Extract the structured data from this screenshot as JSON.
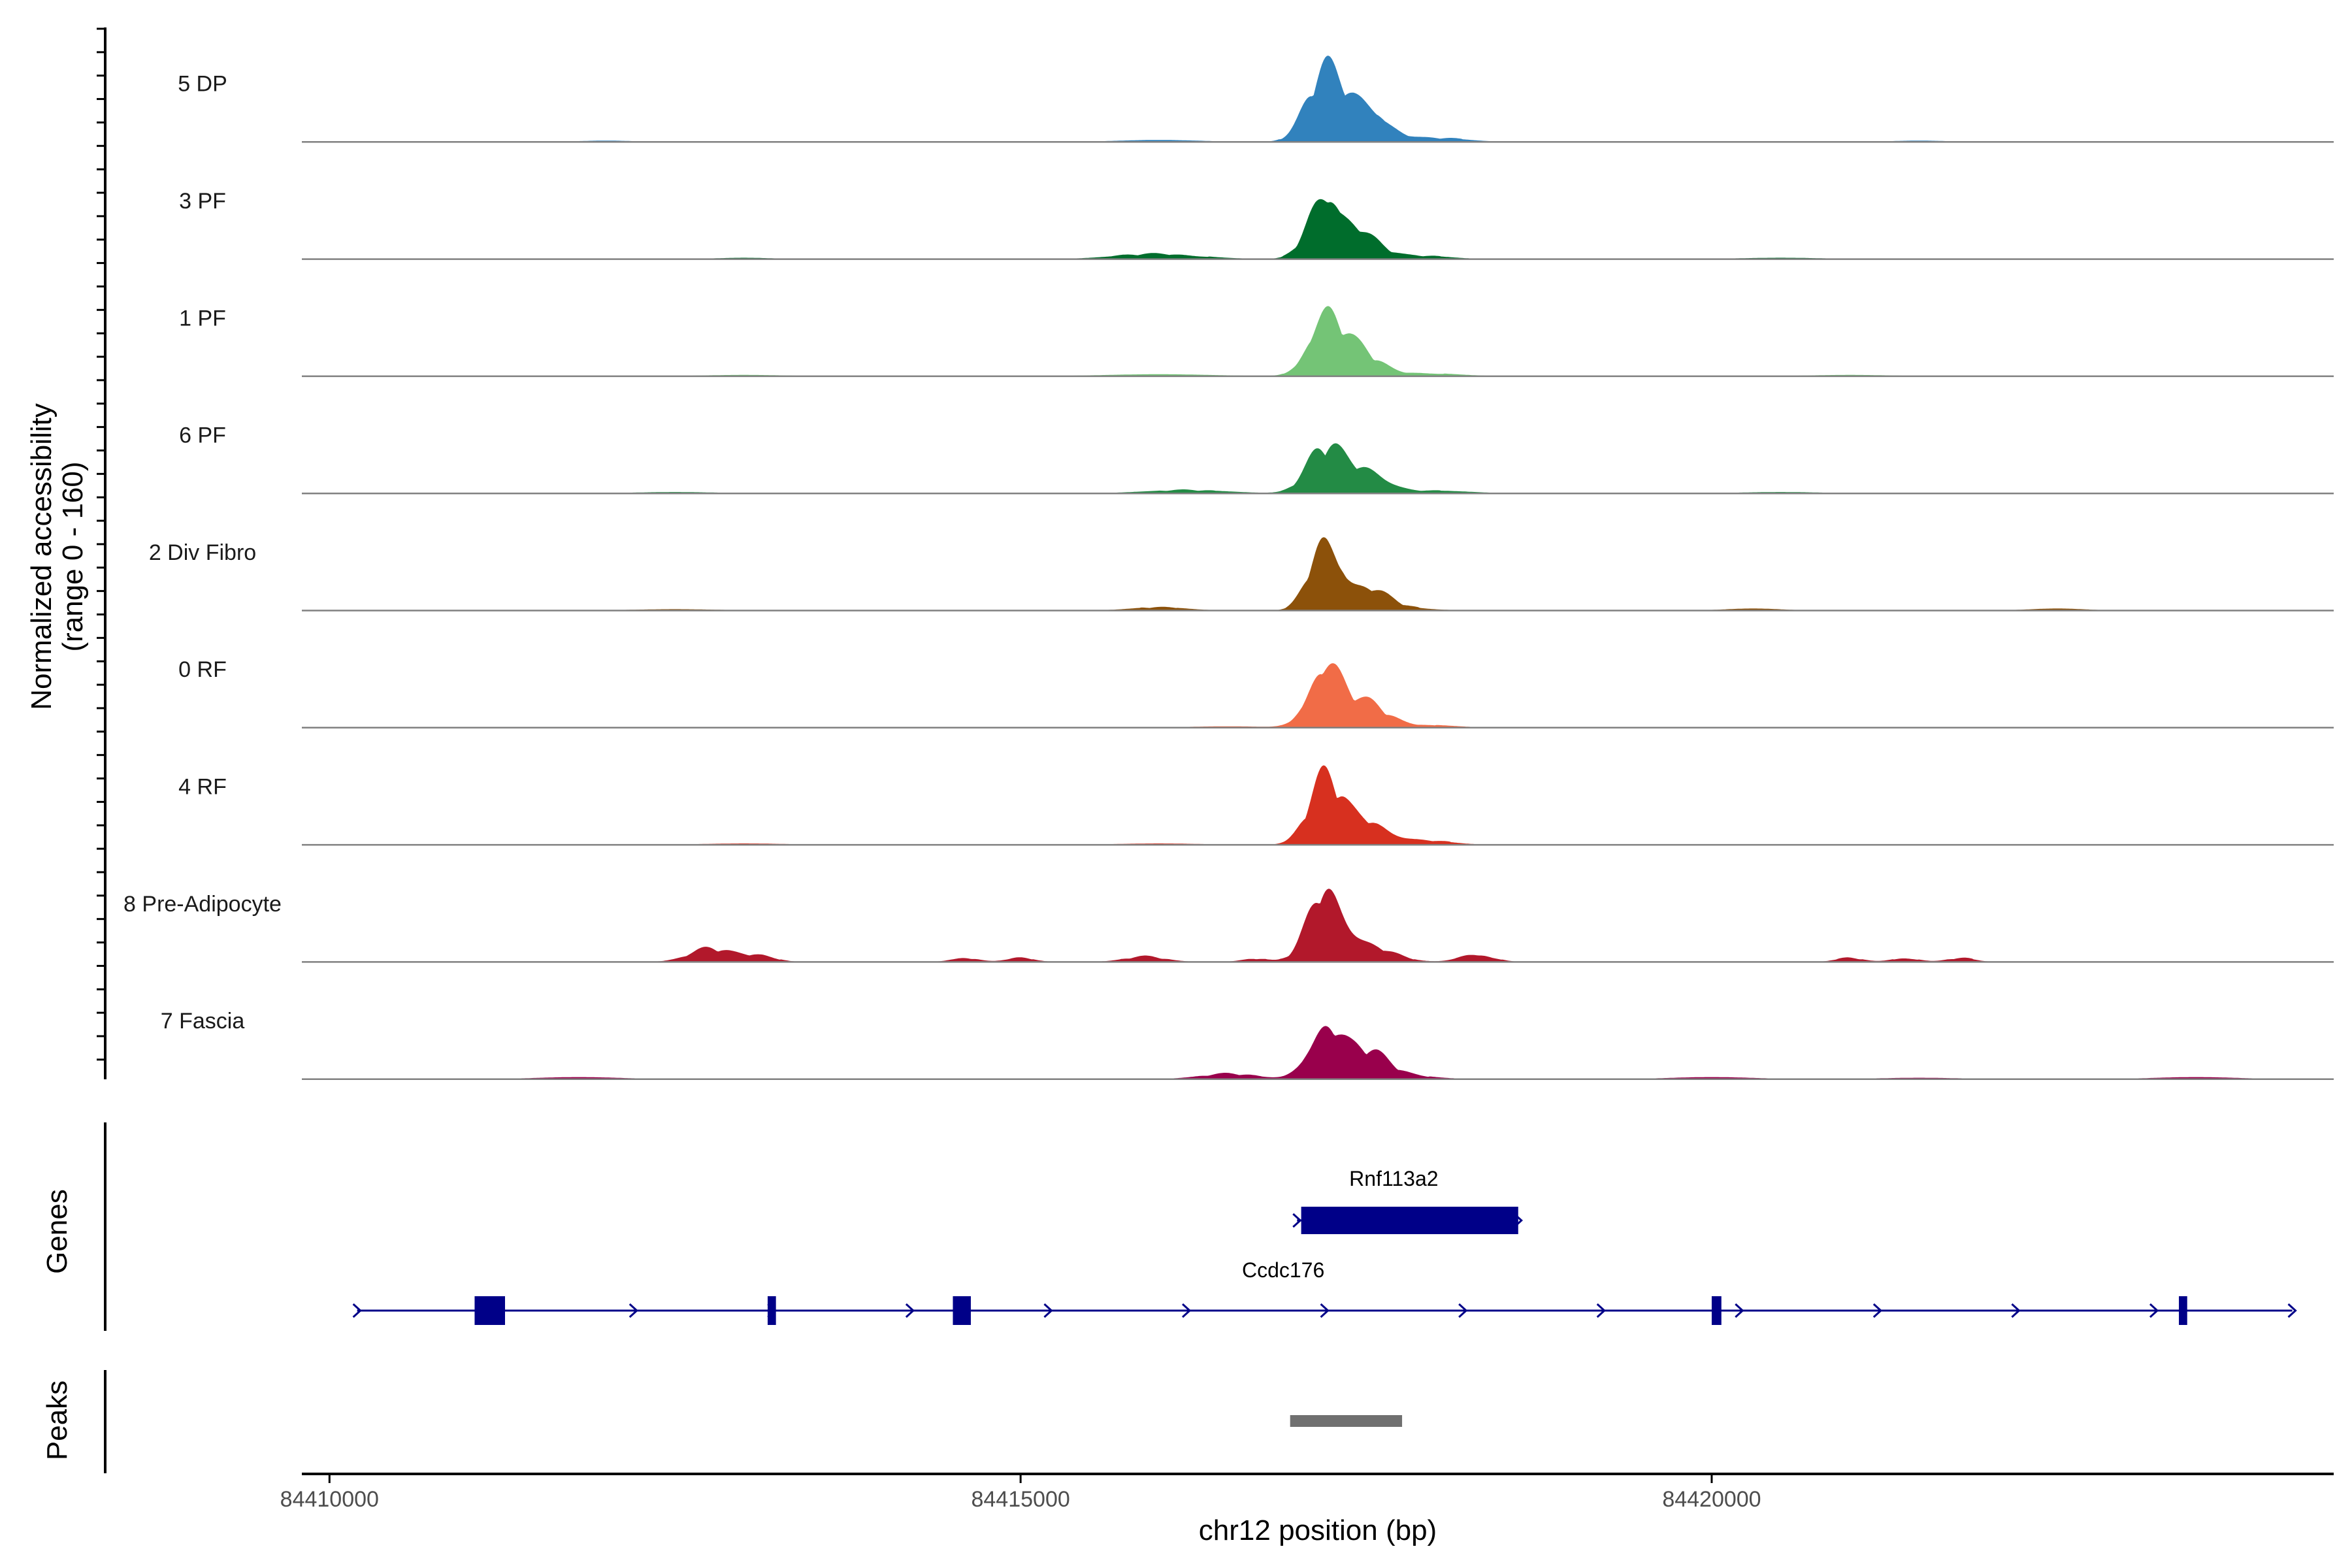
{
  "chart_data": {
    "type": "area",
    "title": "",
    "xlabel": "chr12 position (bp)",
    "ylabel": "Normalized accessibility",
    "ylabel_sub": "(range 0 - 160)",
    "ylim": [
      0,
      160
    ],
    "xlim": [
      84409800,
      84424500
    ],
    "x_ticks": [
      84410000,
      84415000,
      84420000
    ],
    "x_tick_labels": [
      "84410000",
      "84415000",
      "84420000"
    ],
    "series": [
      {
        "name": "5 DP",
        "color": "#3182BD",
        "peaks": [
          [
            84417200,
            100,
            130
          ],
          [
            84417500,
            55,
            150
          ],
          [
            84418000,
            6,
            220
          ],
          [
            84416000,
            3,
            300
          ],
          [
            84412000,
            2,
            200
          ],
          [
            84421500,
            2,
            200
          ]
        ]
      },
      {
        "name": "3 PF",
        "color": "#006D2C",
        "peaks": [
          [
            84417200,
            95,
            120
          ],
          [
            84417450,
            40,
            140
          ],
          [
            84416000,
            8,
            300
          ],
          [
            84417900,
            5,
            200
          ],
          [
            84413000,
            2,
            200
          ],
          [
            84420500,
            2,
            300
          ]
        ]
      },
      {
        "name": "1 PF",
        "color": "#74C476",
        "peaks": [
          [
            84417200,
            90,
            120
          ],
          [
            84417450,
            35,
            140
          ],
          [
            84416000,
            3,
            400
          ],
          [
            84417900,
            5,
            250
          ],
          [
            84413000,
            2,
            300
          ],
          [
            84421000,
            2,
            300
          ]
        ]
      },
      {
        "name": "6 PF",
        "color": "#238B45",
        "peaks": [
          [
            84417200,
            65,
            130
          ],
          [
            84417500,
            35,
            150
          ],
          [
            84416200,
            5,
            300
          ],
          [
            84418000,
            4,
            250
          ],
          [
            84412500,
            2,
            300
          ],
          [
            84420500,
            2,
            300
          ]
        ]
      },
      {
        "name": "2 Div Fibro",
        "color": "#8C510A",
        "peaks": [
          [
            84417200,
            105,
            110
          ],
          [
            84417500,
            35,
            150
          ],
          [
            84416000,
            5,
            200
          ],
          [
            84417800,
            3,
            200
          ],
          [
            84412500,
            2,
            300
          ],
          [
            84420300,
            3,
            200
          ],
          [
            84422500,
            3,
            200
          ]
        ]
      },
      {
        "name": "0 RF",
        "color": "#F16C47",
        "peaks": [
          [
            84417200,
            95,
            120
          ],
          [
            84417500,
            35,
            150
          ],
          [
            84417950,
            4,
            200
          ],
          [
            84416500,
            2,
            300
          ],
          [
            84413500,
            1,
            300
          ]
        ]
      },
      {
        "name": "4 RF",
        "color": "#D7301F",
        "peaks": [
          [
            84417200,
            95,
            120
          ],
          [
            84417500,
            36,
            150
          ],
          [
            84417900,
            7,
            200
          ],
          [
            84416000,
            2,
            300
          ],
          [
            84413000,
            2,
            300
          ]
        ]
      },
      {
        "name": "8 Pre-Adipocyte",
        "color": "#B2182B",
        "peaks": [
          [
            84417200,
            100,
            120
          ],
          [
            84417450,
            30,
            200
          ],
          [
            84412750,
            20,
            150
          ],
          [
            84413100,
            10,
            120
          ],
          [
            84418300,
            12,
            120
          ],
          [
            84415900,
            8,
            150
          ],
          [
            84414600,
            6,
            100
          ],
          [
            84415000,
            6,
            100
          ],
          [
            84421000,
            6,
            100
          ],
          [
            84421400,
            6,
            100
          ],
          [
            84421800,
            6,
            100
          ],
          [
            84416700,
            5,
            100
          ]
        ]
      },
      {
        "name": "7 Fascia",
        "color": "#99004C",
        "peaks": [
          [
            84417200,
            80,
            120
          ],
          [
            84417500,
            40,
            150
          ],
          [
            84416500,
            8,
            200
          ],
          [
            84417800,
            5,
            200
          ],
          [
            84411800,
            3,
            300
          ],
          [
            84420000,
            3,
            300
          ],
          [
            84421500,
            2,
            300
          ],
          [
            84423500,
            3,
            300
          ]
        ]
      }
    ],
    "genes": [
      {
        "name": "Rnf113a2",
        "strand": "+",
        "start": 84417000,
        "end": 84418600,
        "exons": [
          [
            84417030,
            84418600
          ]
        ]
      },
      {
        "name": "Ccdc176",
        "strand": "+",
        "start": 84410200,
        "end": 84424200,
        "exons": [
          [
            84411050,
            84411270
          ],
          [
            84413170,
            84413230
          ],
          [
            84414510,
            84414640
          ],
          [
            84420000,
            84420070
          ],
          [
            84423380,
            84423440
          ]
        ]
      }
    ],
    "peaks": [
      [
        84416950,
        84417760
      ]
    ],
    "panel_titles": [
      "Genes",
      "Peaks"
    ]
  },
  "colors": {
    "gene": "#000088",
    "peak": "#707070",
    "baseline": "#808080",
    "axis": "#000000"
  }
}
